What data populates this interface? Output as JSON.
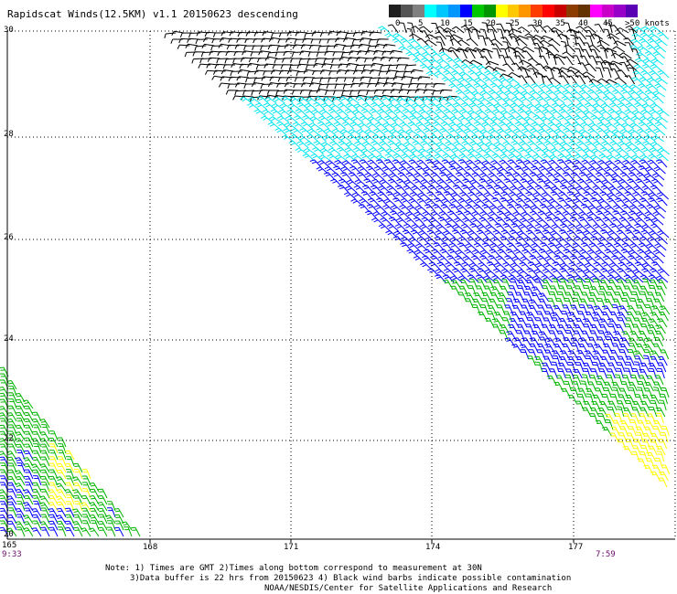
{
  "header": {
    "title": "Rapidscat Winds(12.5KM) v1.1 20150623 descending"
  },
  "colors": {
    "black": "#000000",
    "cyan": "#00e6f0",
    "blue": "#0000ff",
    "green": "#00b400",
    "yellow": "#ffff00",
    "grid": "#000000"
  },
  "legend": {
    "labels": [
      "0",
      "5",
      "10",
      "15",
      "20",
      "25",
      "30",
      "35",
      "40",
      "45",
      ">50 knots"
    ],
    "swatches": [
      "#1e1e1e",
      "#555555",
      "#808080",
      "#00ffff",
      "#00c8ff",
      "#0096ff",
      "#0000ff",
      "#00c800",
      "#009600",
      "#ffff00",
      "#ffc800",
      "#ff9600",
      "#ff3c00",
      "#ff0000",
      "#c80000",
      "#8c3c00",
      "#643200",
      "#ff00ff",
      "#c800c8",
      "#9600c8",
      "#5a00b4"
    ]
  },
  "map": {
    "lat_labels": [
      "30",
      "28",
      "26",
      "24",
      "22",
      "20"
    ],
    "lon_labels": [
      "165",
      "168",
      "171",
      "174",
      "177"
    ],
    "time_left": "9:33",
    "time_right": "7:59"
  },
  "notes": {
    "line1": "Note: 1) Times are GMT 2)Times along bottom correspond to measurement at 30N",
    "line2": "3)Data buffer is 22 hrs from 20150623 4) Black wind barbs indicate possible contamination",
    "line3": "NOAA/NESDIS/Center for Satellite Applications and Research"
  }
}
